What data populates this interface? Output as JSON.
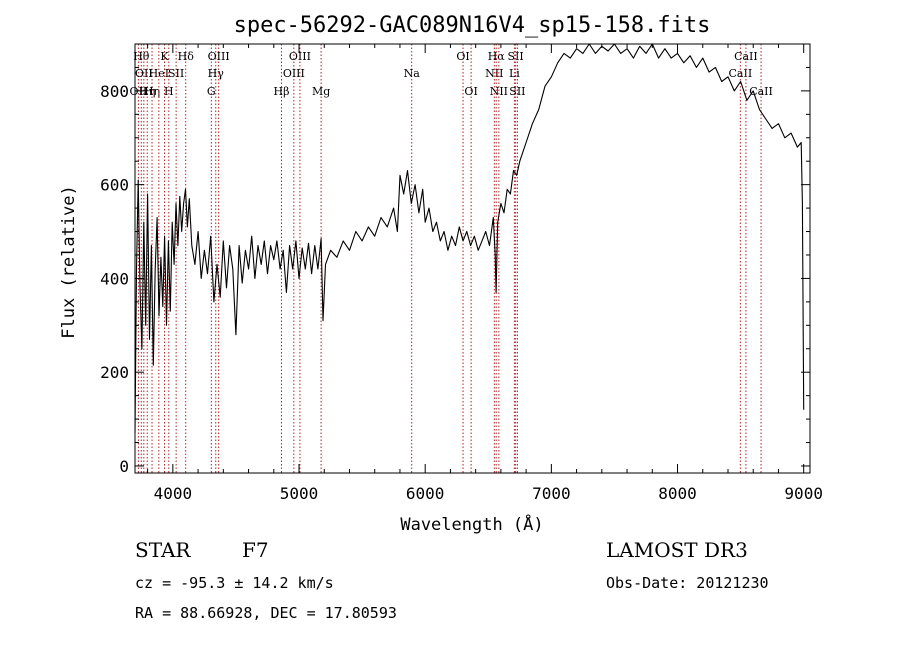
{
  "chart_data": {
    "type": "line",
    "title": "spec-56292-GAC089N16V4_sp15-158.fits",
    "xlabel": "Wavelength (Å)",
    "ylabel": "Flux (relative)",
    "xlim": [
      3700,
      9050
    ],
    "ylim": [
      -15,
      900
    ],
    "x_ticks": [
      4000,
      5000,
      6000,
      7000,
      8000,
      9000
    ],
    "y_ticks": [
      0,
      200,
      400,
      600,
      800
    ],
    "series": [
      {
        "name": "flux",
        "points": [
          [
            3700,
            70
          ],
          [
            3712,
            420
          ],
          [
            3725,
            610
          ],
          [
            3740,
            380
          ],
          [
            3755,
            250
          ],
          [
            3770,
            520
          ],
          [
            3785,
            300
          ],
          [
            3800,
            580
          ],
          [
            3815,
            270
          ],
          [
            3830,
            470
          ],
          [
            3845,
            215
          ],
          [
            3860,
            420
          ],
          [
            3875,
            530
          ],
          [
            3890,
            320
          ],
          [
            3905,
            445
          ],
          [
            3920,
            340
          ],
          [
            3935,
            490
          ],
          [
            3950,
            300
          ],
          [
            3965,
            480
          ],
          [
            3980,
            330
          ],
          [
            3995,
            520
          ],
          [
            4010,
            430
          ],
          [
            4025,
            560
          ],
          [
            4040,
            470
          ],
          [
            4055,
            575
          ],
          [
            4070,
            500
          ],
          [
            4085,
            560
          ],
          [
            4100,
            590
          ],
          [
            4115,
            510
          ],
          [
            4130,
            570
          ],
          [
            4150,
            470
          ],
          [
            4175,
            430
          ],
          [
            4200,
            500
          ],
          [
            4225,
            400
          ],
          [
            4250,
            460
          ],
          [
            4275,
            410
          ],
          [
            4300,
            490
          ],
          [
            4325,
            350
          ],
          [
            4350,
            430
          ],
          [
            4375,
            360
          ],
          [
            4400,
            480
          ],
          [
            4425,
            380
          ],
          [
            4450,
            470
          ],
          [
            4475,
            420
          ],
          [
            4500,
            280
          ],
          [
            4525,
            470
          ],
          [
            4550,
            390
          ],
          [
            4575,
            460
          ],
          [
            4600,
            420
          ],
          [
            4625,
            490
          ],
          [
            4650,
            400
          ],
          [
            4675,
            470
          ],
          [
            4700,
            430
          ],
          [
            4725,
            480
          ],
          [
            4750,
            410
          ],
          [
            4775,
            470
          ],
          [
            4800,
            440
          ],
          [
            4825,
            480
          ],
          [
            4850,
            420
          ],
          [
            4875,
            460
          ],
          [
            4900,
            370
          ],
          [
            4925,
            470
          ],
          [
            4950,
            420
          ],
          [
            4975,
            480
          ],
          [
            5000,
            400
          ],
          [
            5025,
            465
          ],
          [
            5050,
            420
          ],
          [
            5075,
            475
          ],
          [
            5100,
            410
          ],
          [
            5125,
            470
          ],
          [
            5150,
            420
          ],
          [
            5175,
            485
          ],
          [
            5190,
            310
          ],
          [
            5210,
            430
          ],
          [
            5250,
            460
          ],
          [
            5300,
            445
          ],
          [
            5350,
            480
          ],
          [
            5400,
            460
          ],
          [
            5450,
            500
          ],
          [
            5500,
            480
          ],
          [
            5550,
            510
          ],
          [
            5600,
            490
          ],
          [
            5650,
            530
          ],
          [
            5700,
            510
          ],
          [
            5750,
            550
          ],
          [
            5780,
            500
          ],
          [
            5800,
            620
          ],
          [
            5830,
            580
          ],
          [
            5860,
            630
          ],
          [
            5890,
            560
          ],
          [
            5920,
            600
          ],
          [
            5950,
            540
          ],
          [
            5980,
            590
          ],
          [
            6000,
            520
          ],
          [
            6030,
            550
          ],
          [
            6060,
            500
          ],
          [
            6090,
            520
          ],
          [
            6120,
            480
          ],
          [
            6150,
            500
          ],
          [
            6180,
            460
          ],
          [
            6210,
            490
          ],
          [
            6240,
            470
          ],
          [
            6270,
            510
          ],
          [
            6300,
            480
          ],
          [
            6330,
            500
          ],
          [
            6360,
            470
          ],
          [
            6390,
            490
          ],
          [
            6420,
            460
          ],
          [
            6450,
            480
          ],
          [
            6480,
            500
          ],
          [
            6510,
            470
          ],
          [
            6540,
            530
          ],
          [
            6555,
            450
          ],
          [
            6562,
            370
          ],
          [
            6575,
            520
          ],
          [
            6600,
            560
          ],
          [
            6625,
            540
          ],
          [
            6650,
            590
          ],
          [
            6675,
            580
          ],
          [
            6700,
            630
          ],
          [
            6725,
            620
          ],
          [
            6750,
            650
          ],
          [
            6800,
            690
          ],
          [
            6850,
            730
          ],
          [
            6900,
            760
          ],
          [
            6950,
            810
          ],
          [
            7000,
            830
          ],
          [
            7050,
            860
          ],
          [
            7100,
            880
          ],
          [
            7150,
            870
          ],
          [
            7200,
            890
          ],
          [
            7250,
            880
          ],
          [
            7300,
            900
          ],
          [
            7350,
            880
          ],
          [
            7400,
            895
          ],
          [
            7450,
            885
          ],
          [
            7500,
            900
          ],
          [
            7550,
            880
          ],
          [
            7600,
            890
          ],
          [
            7650,
            870
          ],
          [
            7700,
            895
          ],
          [
            7750,
            880
          ],
          [
            7800,
            900
          ],
          [
            7850,
            870
          ],
          [
            7900,
            890
          ],
          [
            7950,
            870
          ],
          [
            8000,
            880
          ],
          [
            8050,
            860
          ],
          [
            8100,
            875
          ],
          [
            8150,
            850
          ],
          [
            8200,
            870
          ],
          [
            8250,
            840
          ],
          [
            8300,
            850
          ],
          [
            8350,
            820
          ],
          [
            8400,
            830
          ],
          [
            8450,
            800
          ],
          [
            8500,
            820
          ],
          [
            8550,
            780
          ],
          [
            8600,
            800
          ],
          [
            8650,
            760
          ],
          [
            8700,
            740
          ],
          [
            8750,
            720
          ],
          [
            8800,
            730
          ],
          [
            8850,
            700
          ],
          [
            8900,
            710
          ],
          [
            8950,
            680
          ],
          [
            8980,
            690
          ],
          [
            8990,
            560
          ],
          [
            9000,
            120
          ]
        ]
      }
    ],
    "lines": [
      {
        "w": 3727,
        "label": "OII",
        "row": 3
      },
      {
        "w": 3750,
        "label": "Hθ",
        "row": 1
      },
      {
        "w": 3770,
        "label": "OII",
        "row": 2
      },
      {
        "w": 3797,
        "label": "Hη",
        "row": 3
      },
      {
        "w": 3835,
        "label": "Hη",
        "row": 3
      },
      {
        "w": 3889,
        "label": "HeI",
        "row": 2
      },
      {
        "w": 3934,
        "label": "K",
        "row": 1
      },
      {
        "w": 3968,
        "label": "H",
        "row": 3
      },
      {
        "w": 4026,
        "label": "SII",
        "row": 2
      },
      {
        "w": 4102,
        "label": "Hδ",
        "row": 1
      },
      {
        "w": 4305,
        "label": "G",
        "row": 3
      },
      {
        "w": 4340,
        "label": "Hγ",
        "row": 2
      },
      {
        "w": 4363,
        "label": "OIII",
        "row": 1
      },
      {
        "w": 4861,
        "label": "Hβ",
        "row": 3
      },
      {
        "w": 4959,
        "label": "OIII",
        "row": 2
      },
      {
        "w": 5007,
        "label": "OIII",
        "row": 1
      },
      {
        "w": 5175,
        "label": "Mg",
        "row": 3
      },
      {
        "w": 5893,
        "label": "Na",
        "row": 2
      },
      {
        "w": 6300,
        "label": "OI",
        "row": 1
      },
      {
        "w": 6364,
        "label": "OI",
        "row": 3
      },
      {
        "w": 6548,
        "label": "NII",
        "row": 2
      },
      {
        "w": 6563,
        "label": "Hα",
        "row": 1
      },
      {
        "w": 6584,
        "label": "NII",
        "row": 3
      },
      {
        "w": 6707,
        "label": "Li",
        "row": 2
      },
      {
        "w": 6717,
        "label": "SII",
        "row": 1
      },
      {
        "w": 6731,
        "label": "SII",
        "row": 3
      },
      {
        "w": 8498,
        "label": "CaII",
        "row": 2
      },
      {
        "w": 8542,
        "label": "CaII",
        "row": 1
      },
      {
        "w": 8662,
        "label": "CaII",
        "row": 3
      }
    ]
  },
  "info": {
    "object_type": "STAR",
    "subclass": "F7",
    "survey": "LAMOST DR3",
    "redshift": "cz = -95.3 ± 14.2 km/s",
    "obs_date": "Obs-Date: 20121230",
    "coords": "RA =  88.66928, DEC =  17.80593"
  },
  "colors": {
    "line_marker": "#b22222",
    "spectrum": "#000000"
  }
}
